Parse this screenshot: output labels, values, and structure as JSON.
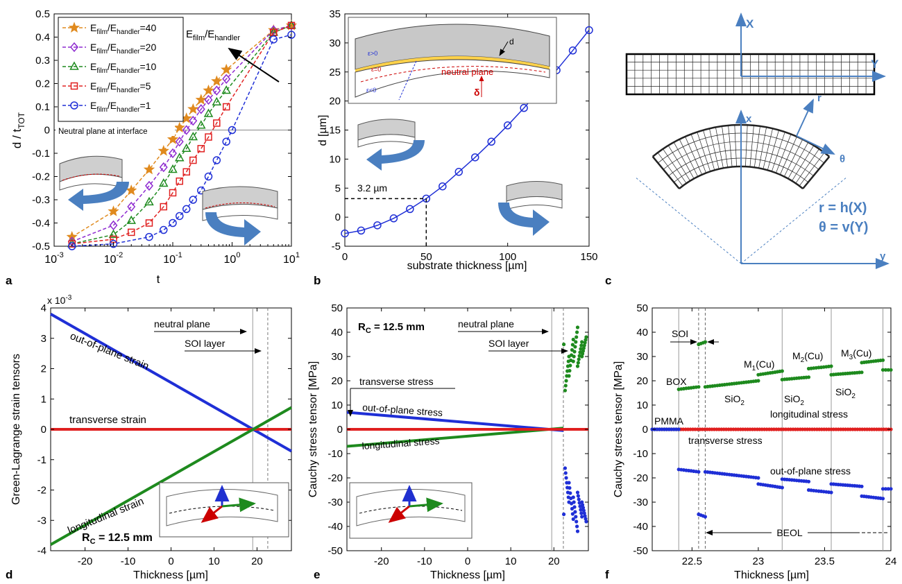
{
  "panel_letters": [
    "a",
    "b",
    "c",
    "d",
    "e",
    "f"
  ],
  "chart_data": [
    {
      "id": "a",
      "type": "line",
      "xscale": "log",
      "xlim": [
        0.001,
        10
      ],
      "ylim": [
        -0.5,
        0.5
      ],
      "ylabel": "d / t",
      "ylabel_sub": "TOT",
      "xlabel": "t",
      "xticks": [
        {
          "v": 0.001,
          "base": "10",
          "exp": "-3"
        },
        {
          "v": 0.01,
          "base": "10",
          "exp": "-2"
        },
        {
          "v": 0.1,
          "base": "10",
          "exp": "-1"
        },
        {
          "v": 1,
          "base": "10",
          "exp": "0"
        },
        {
          "v": 10,
          "base": "10",
          "exp": "1"
        }
      ],
      "yticks": [
        -0.5,
        -0.4,
        -0.3,
        -0.2,
        -0.1,
        0,
        0.1,
        0.2,
        0.3,
        0.4,
        0.5
      ],
      "ytick_labels": [
        "-0.5",
        "-0.4",
        "-0.3",
        "-0.2",
        "-0.1",
        "0",
        "0.1",
        "0.2",
        "0.3",
        "0.4",
        "0.5"
      ],
      "legend": {
        "prefix": "E",
        "sub1": "film",
        "mid": "/E",
        "sub2": "handler",
        "placement": "top-left"
      },
      "arrow_label": {
        "prefix": "E",
        "sub1": "film",
        "mid": "/E",
        "sub2": "handler"
      },
      "annotation": "Neutral plane at interface",
      "series": [
        {
          "name": "=40",
          "color": "#e08a1e",
          "marker": "star",
          "x": [
            0.002,
            0.01,
            0.02,
            0.04,
            0.07,
            0.1,
            0.13,
            0.17,
            0.22,
            0.3,
            0.4,
            0.55,
            0.8,
            5,
            10
          ],
          "y": [
            -0.46,
            -0.35,
            -0.26,
            -0.17,
            -0.09,
            -0.04,
            0.01,
            0.05,
            0.09,
            0.13,
            0.17,
            0.21,
            0.26,
            0.43,
            0.45
          ]
        },
        {
          "name": "=20",
          "color": "#8e2bd0",
          "marker": "diamond",
          "x": [
            0.002,
            0.01,
            0.02,
            0.04,
            0.07,
            0.1,
            0.13,
            0.17,
            0.22,
            0.3,
            0.4,
            0.55,
            0.8,
            5,
            10
          ],
          "y": [
            -0.48,
            -0.41,
            -0.33,
            -0.24,
            -0.16,
            -0.1,
            -0.05,
            0.0,
            0.04,
            0.09,
            0.13,
            0.17,
            0.22,
            0.43,
            0.45
          ]
        },
        {
          "name": "=10",
          "color": "#1e8a1e",
          "marker": "triangle",
          "x": [
            0.002,
            0.01,
            0.02,
            0.04,
            0.07,
            0.1,
            0.13,
            0.17,
            0.22,
            0.3,
            0.4,
            0.55,
            0.8,
            5,
            10
          ],
          "y": [
            -0.49,
            -0.45,
            -0.39,
            -0.31,
            -0.23,
            -0.17,
            -0.12,
            -0.08,
            -0.03,
            0.02,
            0.07,
            0.12,
            0.17,
            0.42,
            0.45
          ]
        },
        {
          "name": "=5",
          "color": "#e02020",
          "marker": "square",
          "x": [
            0.002,
            0.01,
            0.02,
            0.04,
            0.07,
            0.1,
            0.13,
            0.17,
            0.22,
            0.3,
            0.4,
            0.55,
            0.8,
            5,
            10
          ],
          "y": [
            -0.49,
            -0.47,
            -0.44,
            -0.4,
            -0.33,
            -0.27,
            -0.22,
            -0.18,
            -0.13,
            -0.08,
            -0.03,
            0.03,
            0.1,
            0.42,
            0.45
          ]
        },
        {
          "name": "=1",
          "color": "#1f2fd6",
          "marker": "circle",
          "x": [
            0.002,
            0.01,
            0.04,
            0.07,
            0.1,
            0.13,
            0.17,
            0.22,
            0.3,
            0.4,
            0.55,
            0.8,
            1,
            5,
            10
          ],
          "y": [
            -0.5,
            -0.49,
            -0.46,
            -0.43,
            -0.4,
            -0.37,
            -0.34,
            -0.3,
            -0.26,
            -0.2,
            -0.13,
            -0.05,
            0,
            0.39,
            0.41
          ]
        }
      ]
    },
    {
      "id": "b",
      "type": "line",
      "xlim": [
        0,
        150
      ],
      "ylim": [
        -5,
        35
      ],
      "xlabel": "substrate thickness [µm]",
      "ylabel": "d [µm]",
      "xticks": [
        0,
        50,
        100,
        150
      ],
      "xtick_labels": [
        "0",
        "50",
        "100",
        "150"
      ],
      "yticks": [
        -5,
        0,
        5,
        10,
        15,
        20,
        25,
        30,
        35
      ],
      "ytick_labels": [
        "-5",
        "0",
        "5",
        "10",
        "15",
        "20",
        "25",
        "30",
        "35"
      ],
      "callout": "3.2 µm",
      "callout_point": {
        "x": 50,
        "y": 3.2
      },
      "inset_labels": {
        "neutral": "neutral plane",
        "d": "d",
        "delta": "δ",
        "eps_pos": "ε>0",
        "eps_zero": "ε=0",
        "eps_neg": "ε<0"
      },
      "series": [
        {
          "color": "#1f2fd6",
          "marker": "circle",
          "x": [
            0,
            10,
            20,
            30,
            40,
            50,
            60,
            70,
            80,
            90,
            100,
            110,
            120,
            130,
            140,
            150
          ],
          "y": [
            -2.8,
            -2.3,
            -1.4,
            -0.2,
            1.4,
            3.2,
            5.3,
            7.8,
            10.3,
            13.0,
            15.8,
            18.8,
            22.0,
            25.3,
            28.7,
            32.2
          ]
        }
      ]
    },
    {
      "id": "d",
      "type": "line",
      "xlim": [
        -28,
        28
      ],
      "ylim": [
        -4,
        4
      ],
      "xlabel": "Thickness [µm]",
      "ylabel": "Green-Lagrange strain tensors",
      "multiplier": "x 10",
      "multiplier_exp": "-3",
      "xticks": [
        -20,
        -10,
        0,
        10,
        20
      ],
      "xtick_labels": [
        "-20",
        "-10",
        "0",
        "10",
        "20"
      ],
      "yticks": [
        -4,
        -3,
        -2,
        -1,
        0,
        1,
        2,
        3,
        4
      ],
      "ytick_labels": [
        "-4",
        "-3",
        "-2",
        "-1",
        "0",
        "1",
        "2",
        "3",
        "4"
      ],
      "labels": {
        "outplane": "out-of-plane strain",
        "transverse": "transverse strain",
        "longitudinal": "longitudinal strain",
        "neutral": "neutral plane",
        "soi": "SOI layer",
        "rc": "R",
        "rc_sub": "C",
        "rc_val": " = 12.5 mm"
      },
      "series": [
        {
          "name": "out-of-plane strain",
          "color": "#1f2fd6",
          "x": [
            -28,
            28
          ],
          "y": [
            3.8,
            -0.72
          ]
        },
        {
          "name": "transverse strain",
          "color": "#e02020",
          "x": [
            -28,
            28
          ],
          "y": [
            0,
            0
          ]
        },
        {
          "name": "longitudinal strain",
          "color": "#1e8a1e",
          "x": [
            -28,
            28
          ],
          "y": [
            -3.8,
            0.72
          ]
        }
      ]
    },
    {
      "id": "e",
      "type": "line",
      "xlim": [
        -28,
        28
      ],
      "ylim": [
        -50,
        50
      ],
      "xlabel": "Thickness [µm]",
      "ylabel": "Cauchy stress tensor [MPa]",
      "xticks": [
        -20,
        -10,
        0,
        10,
        20
      ],
      "xtick_labels": [
        "-20",
        "-10",
        "0",
        "10",
        "20"
      ],
      "yticks": [
        -50,
        -40,
        -30,
        -20,
        -10,
        0,
        10,
        20,
        30,
        40,
        50
      ],
      "ytick_labels": [
        "-50",
        "-40",
        "-30",
        "-20",
        "-10",
        "0",
        "10",
        "20",
        "30",
        "40",
        "50"
      ],
      "labels": {
        "transverse": "transverse stress",
        "outplane": "out-of-plane stress",
        "longitudinal": "longitudinal stress",
        "neutral": "neutral plane",
        "soi": "SOI layer",
        "rc": "R",
        "rc_sub": "C",
        "rc_val": " = 12.5 mm"
      },
      "series": [
        {
          "name": "out-of-plane stress",
          "color": "#1f2fd6",
          "x": [
            -28,
            22.2
          ],
          "y": [
            7.0,
            -0.5
          ]
        },
        {
          "name": "longitudinal stress",
          "color": "#1e8a1e",
          "x": [
            -28,
            22.2
          ],
          "y": [
            -7.0,
            0.5
          ]
        },
        {
          "name": "transverse stress",
          "color": "#e02020",
          "x": [
            -28,
            28
          ],
          "y": [
            0,
            0
          ]
        }
      ]
    },
    {
      "id": "f",
      "type": "scatter",
      "xlim": [
        22.2,
        24
      ],
      "ylim": [
        -50,
        50
      ],
      "xlabel": "Thickness [µm]",
      "ylabel": "Cauchy stress tensor [MPa]",
      "xticks": [
        22.5,
        23,
        23.5,
        24
      ],
      "xtick_labels": [
        "22.5",
        "23",
        "23.5",
        "24"
      ],
      "yticks": [
        -50,
        -40,
        -30,
        -20,
        -10,
        0,
        10,
        20,
        30,
        40,
        50
      ],
      "ytick_labels": [
        "-50",
        "-40",
        "-30",
        "-20",
        "-10",
        "0",
        "10",
        "20",
        "30",
        "40",
        "50"
      ],
      "labels": {
        "soi": "SOI",
        "box": "BOX",
        "pmma": "PMMA",
        "sio2": "SiO",
        "m1": "M",
        "m2": "M",
        "m3": "M",
        "cu": "(Cu)",
        "long": "longitudinal stress",
        "trans": "transverse stress",
        "out": "out-of-plane stress",
        "beol": "BEOL"
      },
      "segments_green": [
        {
          "x": [
            22.2,
            22.4
          ],
          "y": [
            0,
            0
          ]
        },
        {
          "x": [
            22.4,
            22.55
          ],
          "y": [
            16.5,
            17.5
          ]
        },
        {
          "x": [
            22.55,
            22.6
          ],
          "y": [
            35,
            36
          ]
        },
        {
          "x": [
            22.6,
            23.0
          ],
          "y": [
            17.5,
            20
          ]
        },
        {
          "x": [
            23.0,
            23.18
          ],
          "y": [
            22.5,
            24
          ]
        },
        {
          "x": [
            23.18,
            23.38
          ],
          "y": [
            20.5,
            21.5
          ]
        },
        {
          "x": [
            23.38,
            23.55
          ],
          "y": [
            25,
            26
          ]
        },
        {
          "x": [
            23.55,
            23.78
          ],
          "y": [
            22.5,
            23.5
          ]
        },
        {
          "x": [
            23.78,
            23.94
          ],
          "y": [
            27.5,
            28.5
          ]
        },
        {
          "x": [
            23.94,
            24.0
          ],
          "y": [
            24.5,
            24.5
          ]
        }
      ],
      "segments_blue": [
        {
          "x": [
            22.2,
            22.4
          ],
          "y": [
            0,
            0
          ]
        },
        {
          "x": [
            22.4,
            22.55
          ],
          "y": [
            -16.5,
            -17.5
          ]
        },
        {
          "x": [
            22.55,
            22.6
          ],
          "y": [
            -35,
            -36
          ]
        },
        {
          "x": [
            22.6,
            23.0
          ],
          "y": [
            -17.5,
            -20
          ]
        },
        {
          "x": [
            23.0,
            23.18
          ],
          "y": [
            -22.5,
            -24
          ]
        },
        {
          "x": [
            23.18,
            23.38
          ],
          "y": [
            -20.5,
            -21.5
          ]
        },
        {
          "x": [
            23.38,
            23.55
          ],
          "y": [
            -25,
            -26
          ]
        },
        {
          "x": [
            23.55,
            23.78
          ],
          "y": [
            -22.5,
            -23.5
          ]
        },
        {
          "x": [
            23.78,
            23.94
          ],
          "y": [
            -27.5,
            -28.5
          ]
        },
        {
          "x": [
            23.94,
            24.0
          ],
          "y": [
            -24.5,
            -24.5
          ]
        }
      ],
      "vlines": [
        22.4,
        22.55,
        22.6,
        23.18,
        23.55,
        23.94
      ]
    }
  ],
  "panel_c": {
    "X": "X",
    "Y": "Y",
    "x": "x",
    "y": "y",
    "r": "r",
    "theta": "θ",
    "eq1": "r = h(X)",
    "eq2": "θ = v(Y)"
  }
}
